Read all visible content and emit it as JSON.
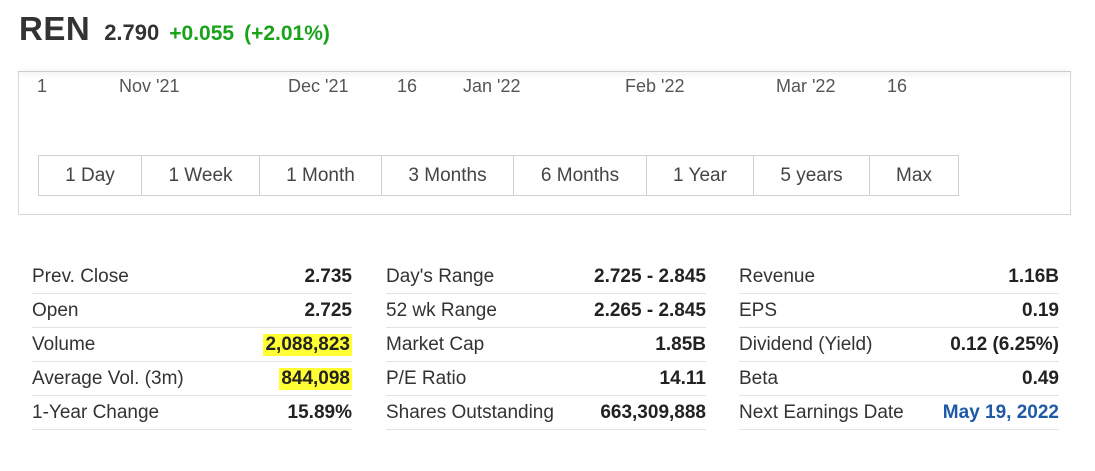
{
  "header": {
    "ticker": "REN",
    "price": "2.790",
    "change": "+0.055",
    "change_pct": "(+2.01%)",
    "change_color": "#1aa31a"
  },
  "chart": {
    "x_ticks": [
      "1",
      "Nov '21",
      "Dec '21",
      "16",
      "Jan '22",
      "Feb '22",
      "Mar '22",
      "16"
    ]
  },
  "range_buttons": [
    "1 Day",
    "1 Week",
    "1 Month",
    "3 Months",
    "6 Months",
    "1 Year",
    "5 years",
    "Max"
  ],
  "stats": {
    "col1": [
      {
        "label": "Prev. Close",
        "value": "2.735"
      },
      {
        "label": "Open",
        "value": "2.725"
      },
      {
        "label": "Volume",
        "value": "2,088,823"
      },
      {
        "label": "Average Vol. (3m)",
        "value": "844,098"
      },
      {
        "label": "1-Year Change",
        "value": "15.89%"
      }
    ],
    "col2": [
      {
        "label": "Day's Range",
        "value": "2.725 - 2.845"
      },
      {
        "label": "52 wk Range",
        "value": "2.265 - 2.845"
      },
      {
        "label": "Market Cap",
        "value": "1.85B"
      },
      {
        "label": "P/E Ratio",
        "value": "14.11"
      },
      {
        "label": "Shares Outstanding",
        "value": "663,309,888"
      }
    ],
    "col3": [
      {
        "label": "Revenue",
        "value": "1.16B"
      },
      {
        "label": "EPS",
        "value": "0.19"
      },
      {
        "label": "Dividend (Yield)",
        "value": "0.12 (6.25%)"
      },
      {
        "label": "Beta",
        "value": "0.49"
      },
      {
        "label": "Next Earnings Date",
        "value": "May 19, 2022"
      }
    ],
    "highlight_color": "#ffff33",
    "link_color": "#1e5aa8"
  }
}
